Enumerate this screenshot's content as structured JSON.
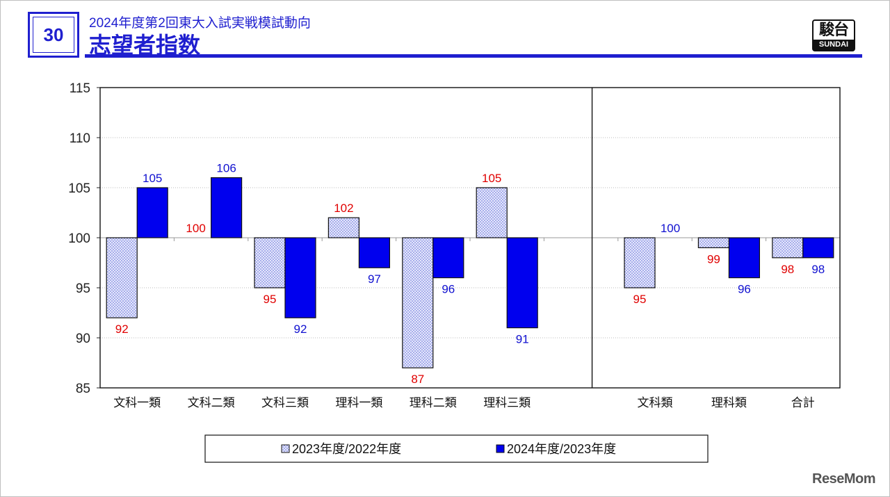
{
  "header": {
    "page_number": "30",
    "subtitle": "2024年度第2回東大入試実戦模試動向",
    "title": "志望者指数"
  },
  "logo": {
    "kanji": "駿台",
    "latin": "SUNDAI"
  },
  "watermark": "ReseMom",
  "colors": {
    "accent": "#1f1fcf",
    "series1_label": "#e00000",
    "series2_label": "#1010d0",
    "series2_fill": "#0000ee",
    "series1_fill": "#c8ccf2"
  },
  "chart_data": {
    "type": "bar",
    "title": "志望者指数",
    "xlabel": "",
    "ylabel": "",
    "ylim": [
      85,
      115
    ],
    "baseline": 100,
    "yticks": [
      85,
      90,
      95,
      100,
      105,
      110,
      115
    ],
    "grid": true,
    "legend_position": "bottom-center",
    "categories": [
      "文科一類",
      "文科二類",
      "文科三類",
      "理科一類",
      "理科二類",
      "理科三類",
      "",
      "文科類",
      "理科類",
      "合計"
    ],
    "series": [
      {
        "name": "2023年度/2022年度",
        "values": [
          92,
          100,
          95,
          102,
          87,
          105,
          null,
          95,
          null,
          98
        ]
      },
      {
        "name": "2024年度/2023年度",
        "values": [
          105,
          106,
          92,
          97,
          96,
          91,
          null,
          100,
          96,
          98
        ]
      }
    ],
    "secondary_values": {
      "series": "2023年度/2022年度",
      "category": "理科類",
      "value": 99
    }
  }
}
